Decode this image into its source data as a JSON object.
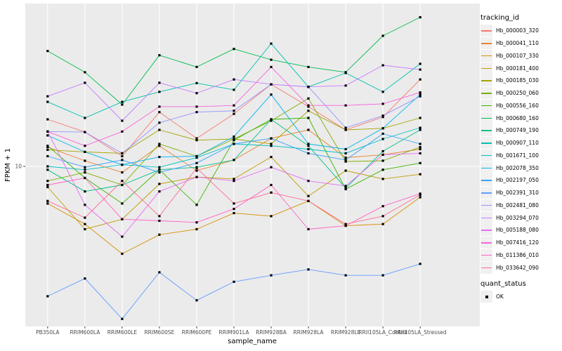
{
  "figure": {
    "background": "#FFFFFF",
    "panel_background": "#EBEBEB",
    "grid_color": "#FFFFFF",
    "axis_text_color": "#4D4D4D",
    "axis_title_color": "#000000",
    "point_color": "#000000"
  },
  "axes": {
    "x_title": "sample_name",
    "y_title": "FPKM + 1",
    "y_tick_labels": [
      "10"
    ]
  },
  "legend": {
    "tracking_title": "tracking_id",
    "quant_title": "quant_status",
    "quant_items": [
      {
        "label": "OK",
        "shape": "filled-square",
        "color": "#000000"
      }
    ]
  },
  "chart_data": {
    "type": "line",
    "title": "",
    "xlabel": "sample_name",
    "ylabel": "FPKM + 1",
    "x_type": "categorical",
    "y_scale": "log10",
    "y_tick_values": [
      10
    ],
    "ylim": [
      1.5,
      65
    ],
    "grid": "vertical-major-plus-y10",
    "legend_position": "right",
    "point_shape": "filled-square-black",
    "categories": [
      "PB350LA",
      "RRIM600LA",
      "RRIM600LE",
      "RRIM600SE",
      "RRIM600PE",
      "RRIM901LA",
      "RRIM928BA",
      "RRIM928LA",
      "RRIM928LE",
      "RRII105LA_Control",
      "RRII105LA_Stressed"
    ],
    "series": [
      {
        "name": "Hb_000003_320",
        "color": "#F8766D",
        "values": [
          17.6,
          15.1,
          11.3,
          19.2,
          14.0,
          18.8,
          26.8,
          20.5,
          15.5,
          18.1,
          28.4
        ]
      },
      {
        "name": "Hb_000041_110",
        "color": "#EA8331",
        "values": [
          12.6,
          10.7,
          9.3,
          12.8,
          9.5,
          10.8,
          14.0,
          15.5,
          11.1,
          11.5,
          12.3
        ]
      },
      {
        "name": "Hb_000107_330",
        "color": "#D89000",
        "values": [
          6.4,
          5.0,
          3.5,
          4.4,
          4.7,
          5.7,
          5.5,
          6.6,
          4.9,
          5.0,
          6.9
        ]
      },
      {
        "name": "Hb_000181_400",
        "color": "#C09B00",
        "values": [
          7.8,
          4.7,
          5.3,
          8.1,
          8.8,
          8.6,
          11.2,
          7.0,
          9.5,
          8.6,
          9.1
        ]
      },
      {
        "name": "Hb_000185_030",
        "color": "#A3A500",
        "values": [
          12.2,
          11.9,
          11.7,
          15.5,
          13.7,
          13.9,
          13.1,
          19.5,
          15.5,
          15.8,
          17.9
        ]
      },
      {
        "name": "Hb_000250_060",
        "color": "#7CAE00",
        "values": [
          8.4,
          9.3,
          8.0,
          13.1,
          11.3,
          13.9,
          17.3,
          22.6,
          10.6,
          10.7,
          12.6
        ]
      },
      {
        "name": "Hb_000556_160",
        "color": "#39B600",
        "values": [
          12.8,
          8.7,
          6.4,
          9.6,
          6.3,
          13.7,
          17.6,
          17.9,
          7.6,
          9.6,
          10.4
        ]
      },
      {
        "name": "Hb_000680_160",
        "color": "#00BB4E",
        "values": [
          40,
          31,
          21,
          38,
          33,
          41,
          36,
          33,
          31,
          48,
          60
        ]
      },
      {
        "name": "Hb_000749_190",
        "color": "#00C087",
        "values": [
          9.6,
          7.4,
          8.0,
          9.6,
          9.9,
          10.8,
          17.6,
          12.8,
          7.7,
          12.0,
          15.5
        ]
      },
      {
        "name": "Hb_000907_110",
        "color": "#00C0AF",
        "values": [
          21.7,
          17.9,
          21.7,
          24.5,
          27.2,
          25.1,
          43.7,
          26.0,
          30.7,
          24.5,
          34.3
        ]
      },
      {
        "name": "Hb_001671_100",
        "color": "#00BFC4",
        "values": [
          10.0,
          9.6,
          10.2,
          9.9,
          11.1,
          13.1,
          12.8,
          12.3,
          11.7,
          13.9,
          15.9
        ]
      },
      {
        "name": "Hb_002078_350",
        "color": "#00B5EC",
        "values": [
          14.5,
          11.9,
          10.2,
          11.2,
          11.3,
          14.3,
          23.7,
          13.1,
          12.3,
          15.8,
          23.7
        ]
      },
      {
        "name": "Hb_002197_050",
        "color": "#35A2FF",
        "values": [
          11.3,
          9.9,
          10.8,
          9.3,
          10.4,
          13.1,
          14.0,
          11.7,
          10.8,
          14.8,
          13.1
        ]
      },
      {
        "name": "Hb_002391_310",
        "color": "#619CFF",
        "values": [
          2.1,
          2.6,
          1.6,
          2.8,
          2.0,
          2.5,
          2.7,
          2.9,
          2.7,
          2.7,
          3.1
        ]
      },
      {
        "name": "Hb_002481_080",
        "color": "#9590FF",
        "values": [
          15.2,
          15.1,
          11.7,
          16.9,
          19.2,
          19.5,
          26.8,
          26.0,
          15.9,
          18.4,
          23.2
        ]
      },
      {
        "name": "Hb_003294_070",
        "color": "#C77CFF",
        "values": [
          23.2,
          27.3,
          17.3,
          27.3,
          24.1,
          28.4,
          26.8,
          26.0,
          26.4,
          33.7,
          32.0
        ]
      },
      {
        "name": "Hb_005188_080",
        "color": "#E76BF3",
        "values": [
          15.2,
          6.3,
          4.3,
          7.4,
          8.8,
          8.4,
          9.9,
          8.4,
          7.9,
          11.5,
          11.7
        ]
      },
      {
        "name": "Hb_007416_120",
        "color": "#FA62DB",
        "values": [
          15.2,
          12.8,
          15.2,
          20.5,
          20.5,
          20.8,
          33.0,
          20.8,
          20.8,
          21.2,
          24.3
        ]
      },
      {
        "name": "Hb_011386_010",
        "color": "#FF61C3",
        "values": [
          8.0,
          8.7,
          5.3,
          5.2,
          5.1,
          6.0,
          8.0,
          4.7,
          4.9,
          6.2,
          7.2
        ]
      },
      {
        "name": "Hb_033642_090",
        "color": "#FF6B94",
        "values": [
          6.6,
          5.4,
          8.4,
          5.5,
          9.8,
          6.4,
          7.3,
          6.6,
          5.0,
          5.5,
          7.1
        ]
      }
    ]
  }
}
